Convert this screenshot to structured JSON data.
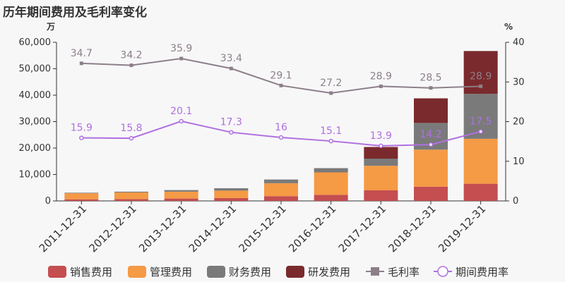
{
  "title": "历年期间费用及毛利率变化",
  "chart_data": {
    "type": "bar",
    "categories": [
      "2011-12-31",
      "2012-12-31",
      "2013-12-31",
      "2014-12-31",
      "2015-12-31",
      "2016-12-31",
      "2017-12-31",
      "2018-12-31",
      "2019-12-31"
    ],
    "left_axis": {
      "unit": "万",
      "ylim": [
        0,
        60000
      ],
      "ticks": [
        "0",
        "10,000",
        "20,000",
        "30,000",
        "40,000",
        "50,000",
        "60,000"
      ]
    },
    "right_axis": {
      "unit": "%",
      "ylim": [
        0,
        40
      ],
      "ticks": [
        "0",
        "10",
        "20",
        "30",
        "40"
      ]
    },
    "series": [
      {
        "name": "销售费用",
        "kind": "bar",
        "color": "#c44e50",
        "values": [
          600,
          700,
          900,
          1100,
          1800,
          2300,
          4000,
          5400,
          6500
        ]
      },
      {
        "name": "管理费用",
        "kind": "bar",
        "color": "#f59a45",
        "values": [
          2300,
          2500,
          2600,
          2800,
          4900,
          8500,
          9300,
          14000,
          17000
        ]
      },
      {
        "name": "财务费用",
        "kind": "bar",
        "color": "#7a7a7a",
        "values": [
          200,
          300,
          600,
          900,
          1400,
          1600,
          2700,
          10100,
          17000
        ]
      },
      {
        "name": "研发费用",
        "kind": "bar",
        "color": "#7a2a2c",
        "values": [
          0,
          0,
          0,
          0,
          0,
          0,
          4400,
          9300,
          16200
        ]
      },
      {
        "name": "毛利率",
        "kind": "line",
        "axis": "right",
        "color": "#8c7f89",
        "marker": "square",
        "values": [
          34.7,
          34.2,
          35.9,
          33.4,
          29.1,
          27.2,
          28.9,
          28.5,
          28.9
        ],
        "labels": [
          "34.7",
          "34.2",
          "35.9",
          "33.4",
          "29.1",
          "27.2",
          "28.9",
          "28.5",
          "28.9"
        ]
      },
      {
        "name": "期间费用率",
        "kind": "line",
        "axis": "right",
        "color": "#b070e0",
        "marker": "circle",
        "values": [
          15.9,
          15.8,
          20.1,
          17.3,
          16,
          15.1,
          13.9,
          14.2,
          17.5
        ],
        "labels": [
          "15.9",
          "15.8",
          "20.1",
          "17.3",
          "16",
          "15.1",
          "13.9",
          "14.2",
          "17.5"
        ]
      }
    ],
    "grid": false,
    "legend_position": "bottom"
  }
}
